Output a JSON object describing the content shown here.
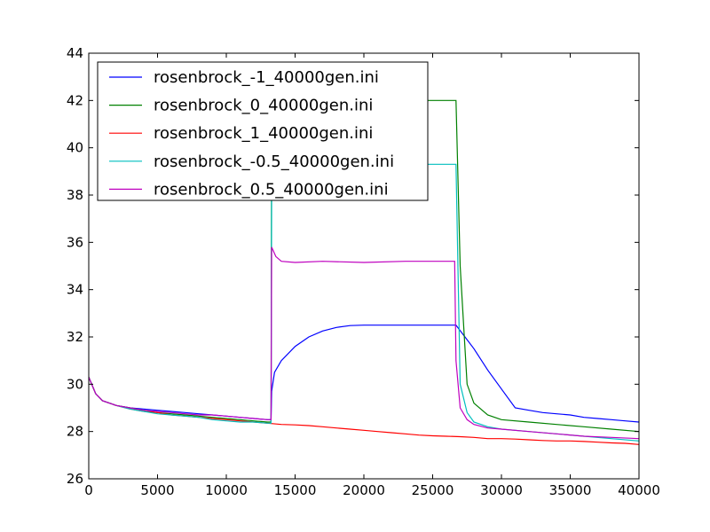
{
  "chart_data": {
    "type": "line",
    "title": "",
    "xlabel": "",
    "ylabel": "",
    "xlim": [
      0,
      40000
    ],
    "ylim": [
      26,
      44
    ],
    "xticks": [
      0,
      5000,
      10000,
      15000,
      20000,
      25000,
      30000,
      35000,
      40000
    ],
    "yticks": [
      26,
      28,
      30,
      32,
      34,
      36,
      38,
      40,
      42,
      44
    ],
    "grid": false,
    "legend_position": "top-left",
    "series": [
      {
        "name": "rosenbrock_-1_40000gen.ini",
        "color": "#0000ff",
        "x": [
          0,
          500,
          1000,
          2000,
          3000,
          4000,
          5000,
          6000,
          7000,
          8000,
          9000,
          10000,
          11000,
          12000,
          13000,
          13250,
          13300,
          13500,
          14000,
          15000,
          16000,
          17000,
          18000,
          19000,
          20000,
          22000,
          24000,
          26000,
          26700,
          28000,
          29000,
          30000,
          31000,
          32000,
          33000,
          34000,
          35000,
          36000,
          37000,
          38000,
          39000,
          40000
        ],
        "y": [
          30.3,
          29.6,
          29.3,
          29.1,
          29.0,
          28.95,
          28.9,
          28.85,
          28.8,
          28.75,
          28.7,
          28.65,
          28.6,
          28.55,
          28.5,
          28.5,
          29.7,
          30.5,
          31.0,
          31.6,
          32.0,
          32.25,
          32.4,
          32.48,
          32.5,
          32.5,
          32.5,
          32.5,
          32.5,
          31.5,
          30.6,
          29.8,
          29.0,
          28.9,
          28.8,
          28.75,
          28.7,
          28.6,
          28.55,
          28.5,
          28.45,
          28.4
        ]
      },
      {
        "name": "rosenbrock_0_40000gen.ini",
        "color": "#008000",
        "x": [
          0,
          500,
          1000,
          2000,
          3000,
          4000,
          5000,
          6000,
          7000,
          8000,
          9000,
          10000,
          11000,
          12000,
          13000,
          13250,
          13300,
          13500,
          15000,
          20000,
          25000,
          26700,
          27000,
          27500,
          28000,
          29000,
          30000,
          32000,
          34000,
          36000,
          38000,
          40000
        ],
        "y": [
          30.3,
          29.6,
          29.3,
          29.1,
          29.0,
          28.9,
          28.8,
          28.75,
          28.7,
          28.65,
          28.6,
          28.55,
          28.5,
          28.45,
          28.4,
          28.4,
          42.0,
          42.0,
          42.0,
          42.0,
          42.0,
          42.0,
          35.0,
          30.0,
          29.2,
          28.7,
          28.5,
          28.4,
          28.3,
          28.2,
          28.1,
          28.0
        ]
      },
      {
        "name": "rosenbrock_1_40000gen.ini",
        "color": "#ff0000",
        "x": [
          0,
          500,
          1000,
          2000,
          3000,
          4000,
          5000,
          6000,
          7000,
          8000,
          9000,
          10000,
          11000,
          12000,
          13000,
          14000,
          15000,
          16000,
          17000,
          18000,
          19000,
          20000,
          21000,
          22000,
          23000,
          24000,
          25000,
          26000,
          27000,
          28000,
          29000,
          30000,
          31000,
          32000,
          33000,
          34000,
          35000,
          36000,
          37000,
          38000,
          39000,
          40000
        ],
        "y": [
          30.3,
          29.6,
          29.3,
          29.1,
          28.95,
          28.85,
          28.8,
          28.7,
          28.65,
          28.6,
          28.55,
          28.5,
          28.45,
          28.4,
          28.35,
          28.3,
          28.28,
          28.25,
          28.2,
          28.15,
          28.1,
          28.05,
          28.0,
          27.95,
          27.9,
          27.85,
          27.82,
          27.8,
          27.78,
          27.75,
          27.7,
          27.7,
          27.68,
          27.65,
          27.62,
          27.6,
          27.6,
          27.58,
          27.55,
          27.52,
          27.5,
          27.45
        ]
      },
      {
        "name": "rosenbrock_-0.5_40000gen.ini",
        "color": "#00bfbf",
        "x": [
          0,
          500,
          1000,
          2000,
          3000,
          4000,
          5000,
          6000,
          7000,
          8000,
          9000,
          10000,
          11000,
          12000,
          13000,
          13250,
          13300,
          13500,
          15000,
          20000,
          25000,
          26500,
          26700,
          27000,
          27500,
          28000,
          29000,
          30000,
          32000,
          34000,
          36000,
          38000,
          40000
        ],
        "y": [
          30.3,
          29.6,
          29.3,
          29.1,
          28.95,
          28.85,
          28.75,
          28.7,
          28.65,
          28.6,
          28.5,
          28.45,
          28.4,
          28.4,
          28.35,
          28.35,
          37.8,
          39.3,
          39.3,
          39.3,
          39.3,
          39.3,
          39.3,
          30.0,
          28.8,
          28.4,
          28.2,
          28.1,
          28.0,
          27.9,
          27.8,
          27.7,
          27.6
        ]
      },
      {
        "name": "rosenbrock_0.5_40000gen.ini",
        "color": "#bf00bf",
        "x": [
          0,
          500,
          1000,
          2000,
          3000,
          4000,
          5000,
          6000,
          7000,
          8000,
          9000,
          10000,
          11000,
          12000,
          13000,
          13250,
          13300,
          13600,
          14000,
          15000,
          17000,
          20000,
          23000,
          26600,
          26700,
          27000,
          27500,
          28000,
          29000,
          30000,
          32000,
          34000,
          36000,
          38000,
          40000
        ],
        "y": [
          30.3,
          29.6,
          29.3,
          29.1,
          29.0,
          28.9,
          28.85,
          28.8,
          28.75,
          28.7,
          28.7,
          28.65,
          28.6,
          28.55,
          28.5,
          28.5,
          35.8,
          35.4,
          35.2,
          35.15,
          35.2,
          35.15,
          35.2,
          35.2,
          31.0,
          29.0,
          28.5,
          28.3,
          28.15,
          28.1,
          28.0,
          27.9,
          27.8,
          27.75,
          27.7
        ]
      }
    ]
  }
}
